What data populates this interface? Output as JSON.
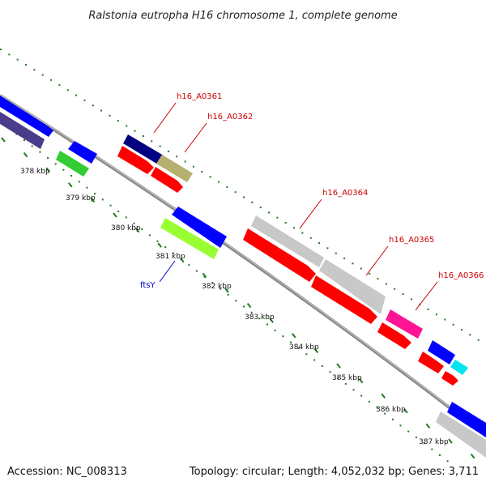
{
  "title": "Ralstonia eutropha H16 chromosome 1, complete genome",
  "footer": {
    "accession": "Accession: NC_008313",
    "summary": "Topology: circular; Length: 4,052,032 bp; Genes: 3,711"
  },
  "scale_ticks": [
    "378 kbp",
    "379 kbp",
    "380 kbp",
    "381 kbp",
    "382 kbp",
    "383 kbp",
    "384 kbp",
    "385 kbp",
    "386 kbp",
    "387 kbp"
  ],
  "gene_labels": [
    {
      "id": "h16_A0361",
      "color": "#cc0000"
    },
    {
      "id": "h16_A0362",
      "color": "#cc0000"
    },
    {
      "id": "h16_A0364",
      "color": "#cc0000"
    },
    {
      "id": "h16_A0365",
      "color": "#cc0000"
    },
    {
      "id": "h16_A0366",
      "color": "#cc0000"
    },
    {
      "id": "ftsY",
      "color": "#0000cc"
    }
  ],
  "colors": {
    "backbone": "#8a8a8a",
    "tick_marks": "#1f7a1f",
    "cds_forward": "#0000ff",
    "cds_reverse": "#ff0000",
    "navy": "#000080",
    "purple": "#4b3c8c",
    "khaki": "#b5b06e",
    "green": "#33cc33",
    "lime": "#99ff33",
    "silver": "#c8c8c8",
    "magenta": "#ff1493",
    "cyan": "#00e5ee"
  }
}
